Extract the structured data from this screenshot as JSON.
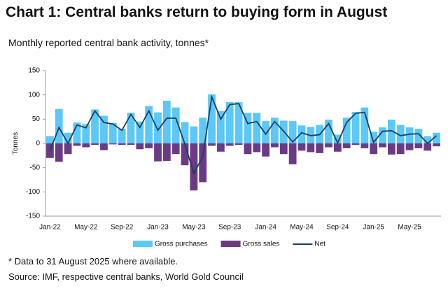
{
  "chart_data": {
    "type": "bar",
    "title": "Chart 1: Central banks return to buying form in August",
    "subtitle": "Monthly reported central bank activity, tonnes*",
    "y_label": "Tonnes",
    "notes": [
      "* Data to 31 August 2025 where available.",
      "Source: IMF, respective central banks, World Gold Council"
    ],
    "categories": [
      "Jan-22",
      null,
      null,
      null,
      "May-22",
      null,
      null,
      null,
      "Sep-22",
      null,
      null,
      null,
      "Jan-23",
      null,
      null,
      null,
      "May-23",
      null,
      null,
      null,
      "Sep-23",
      null,
      null,
      null,
      "Jan-24",
      null,
      null,
      null,
      "May-24",
      null,
      null,
      null,
      "Sep-24",
      null,
      null,
      null,
      "Jan-25",
      null,
      null,
      null,
      "May-25",
      null,
      null,
      null
    ],
    "series": [
      {
        "name": "Gross purchases",
        "color": "#5bc8f5",
        "kind": "bar",
        "values": [
          15,
          71,
          22,
          43,
          40,
          70,
          57,
          42,
          30,
          63,
          45,
          77,
          64,
          88,
          74,
          44,
          35,
          53,
          101,
          67,
          85,
          85,
          63,
          63,
          46,
          53,
          47,
          46,
          37,
          34,
          38,
          49,
          18,
          53,
          65,
          74,
          24,
          33,
          49,
          38,
          33,
          30,
          15,
          22
        ]
      },
      {
        "name": "Gross sales",
        "color": "#6b3a84",
        "kind": "bar",
        "values": [
          -30,
          -38,
          -22,
          -5,
          -8,
          -3,
          -14,
          -2,
          -3,
          -3,
          -12,
          -10,
          -37,
          -36,
          -22,
          -45,
          -97,
          -80,
          -5,
          -17,
          -5,
          -3,
          -22,
          -18,
          -27,
          -8,
          -22,
          -43,
          -15,
          -18,
          -20,
          -8,
          -17,
          -10,
          -3,
          -10,
          -22,
          -8,
          -23,
          -22,
          -14,
          -10,
          -15,
          -6
        ]
      },
      {
        "name": "Net",
        "color": "#1c3f60",
        "kind": "line",
        "values": [
          -15,
          33,
          0,
          38,
          32,
          67,
          43,
          40,
          27,
          60,
          33,
          67,
          27,
          52,
          52,
          -1,
          -62,
          -27,
          96,
          50,
          80,
          82,
          41,
          45,
          19,
          45,
          25,
          3,
          22,
          16,
          18,
          41,
          1,
          43,
          62,
          64,
          2,
          25,
          26,
          16,
          19,
          20,
          0,
          16
        ]
      }
    ],
    "ylim": [
      -150,
      150
    ],
    "yticks": [
      -150,
      -100,
      -50,
      0,
      50,
      100,
      150
    ],
    "grid": false
  }
}
